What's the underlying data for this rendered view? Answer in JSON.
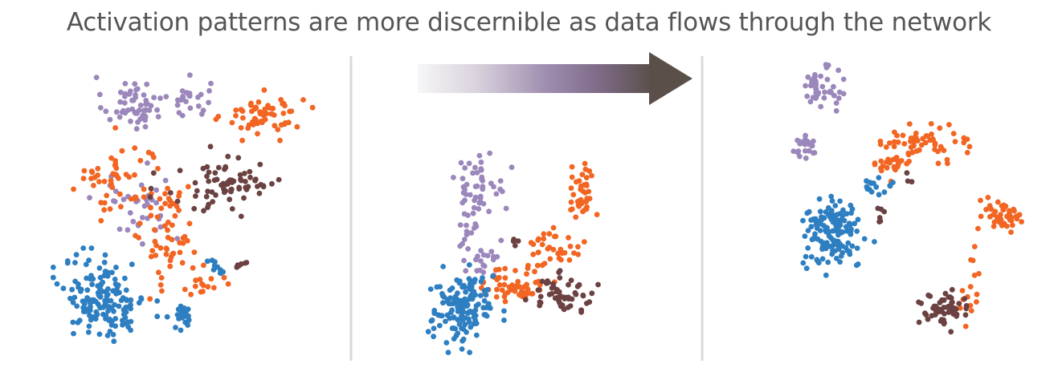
{
  "title": "Activation patterns are more discernible as data flows through the network",
  "colors": {
    "purple": "#9b87bb",
    "orange": "#f26522",
    "brown": "#6b4141",
    "blue": "#2e7fc1",
    "dark": "#555555",
    "divider": "#d9d9d9",
    "arrow_light": "#f3f1f3",
    "arrow_mid": "#8e7aa0",
    "arrow_dark": "#5b4f4a"
  },
  "arrow": {
    "direction": "right",
    "icon": "gradient-arrow-right-icon"
  },
  "chart_data": [
    {
      "type": "scatter",
      "clusters": [
        {
          "color": "purple",
          "cx": 0.3,
          "cy": 0.83,
          "rx": 0.1,
          "ry": 0.08,
          "n": 55
        },
        {
          "color": "purple",
          "cx": 0.52,
          "cy": 0.84,
          "rx": 0.07,
          "ry": 0.06,
          "n": 25
        },
        {
          "color": "purple",
          "cx": 0.32,
          "cy": 0.5,
          "rx": 0.15,
          "ry": 0.12,
          "n": 35
        },
        {
          "color": "orange",
          "cx": 0.8,
          "cy": 0.79,
          "rx": 0.13,
          "ry": 0.06,
          "n": 60
        },
        {
          "color": "orange",
          "cx": 0.25,
          "cy": 0.58,
          "rx": 0.16,
          "ry": 0.12,
          "n": 50
        },
        {
          "color": "orange",
          "cx": 0.45,
          "cy": 0.38,
          "rx": 0.1,
          "ry": 0.16,
          "n": 60
        },
        {
          "color": "orange",
          "cx": 0.58,
          "cy": 0.22,
          "rx": 0.06,
          "ry": 0.05,
          "n": 12
        },
        {
          "color": "brown",
          "cx": 0.65,
          "cy": 0.56,
          "rx": 0.2,
          "ry": 0.09,
          "n": 75
        },
        {
          "color": "brown",
          "cx": 0.72,
          "cy": 0.3,
          "rx": 0.03,
          "ry": 0.02,
          "n": 6
        },
        {
          "color": "blue",
          "cx": 0.2,
          "cy": 0.18,
          "rx": 0.14,
          "ry": 0.12,
          "n": 150
        },
        {
          "color": "blue",
          "cx": 0.49,
          "cy": 0.12,
          "rx": 0.04,
          "ry": 0.04,
          "n": 25
        },
        {
          "color": "blue",
          "cx": 0.62,
          "cy": 0.28,
          "rx": 0.04,
          "ry": 0.03,
          "n": 10
        }
      ]
    },
    {
      "type": "scatter",
      "clusters": [
        {
          "color": "purple",
          "cx": 0.3,
          "cy": 0.72,
          "rx": 0.1,
          "ry": 0.12,
          "n": 50
        },
        {
          "color": "purple",
          "cx": 0.27,
          "cy": 0.46,
          "rx": 0.06,
          "ry": 0.1,
          "n": 20
        },
        {
          "color": "purple",
          "cx": 0.35,
          "cy": 0.4,
          "rx": 0.06,
          "ry": 0.06,
          "n": 10
        },
        {
          "color": "orange",
          "cx": 0.73,
          "cy": 0.67,
          "rx": 0.05,
          "ry": 0.12,
          "n": 40
        },
        {
          "color": "orange",
          "cx": 0.62,
          "cy": 0.45,
          "rx": 0.1,
          "ry": 0.07,
          "n": 35
        },
        {
          "color": "orange",
          "cx": 0.45,
          "cy": 0.3,
          "rx": 0.12,
          "ry": 0.07,
          "n": 55
        },
        {
          "color": "brown",
          "cx": 0.65,
          "cy": 0.26,
          "rx": 0.12,
          "ry": 0.07,
          "n": 55
        },
        {
          "color": "brown",
          "cx": 0.45,
          "cy": 0.48,
          "rx": 0.02,
          "ry": 0.02,
          "n": 4
        },
        {
          "color": "blue",
          "cx": 0.24,
          "cy": 0.2,
          "rx": 0.12,
          "ry": 0.13,
          "n": 150
        }
      ]
    },
    {
      "type": "scatter",
      "clusters": [
        {
          "color": "purple",
          "cx": 0.25,
          "cy": 0.88,
          "rx": 0.06,
          "ry": 0.06,
          "n": 45
        },
        {
          "color": "purple",
          "cx": 0.2,
          "cy": 0.68,
          "rx": 0.05,
          "ry": 0.04,
          "n": 25
        },
        {
          "color": "orange",
          "cx": 0.62,
          "cy": 0.7,
          "rx": 0.13,
          "ry": 0.05,
          "n": 60
        },
        {
          "color": "orange",
          "cx": 0.5,
          "cy": 0.62,
          "rx": 0.06,
          "ry": 0.04,
          "n": 20
        },
        {
          "color": "orange",
          "cx": 0.88,
          "cy": 0.46,
          "rx": 0.06,
          "ry": 0.05,
          "n": 50
        },
        {
          "color": "orange",
          "cx": 0.77,
          "cy": 0.22,
          "rx": 0.03,
          "ry": 0.1,
          "n": 15
        },
        {
          "color": "blue",
          "cx": 0.3,
          "cy": 0.45,
          "rx": 0.08,
          "ry": 0.05,
          "n": 50
        },
        {
          "color": "blue",
          "cx": 0.3,
          "cy": 0.37,
          "rx": 0.1,
          "ry": 0.08,
          "n": 90
        },
        {
          "color": "blue",
          "cx": 0.44,
          "cy": 0.55,
          "rx": 0.06,
          "ry": 0.03,
          "n": 15
        },
        {
          "color": "brown",
          "cx": 0.68,
          "cy": 0.14,
          "rx": 0.08,
          "ry": 0.05,
          "n": 55
        },
        {
          "color": "brown",
          "cx": 0.46,
          "cy": 0.47,
          "rx": 0.02,
          "ry": 0.04,
          "n": 6
        },
        {
          "color": "brown",
          "cx": 0.56,
          "cy": 0.58,
          "rx": 0.02,
          "ry": 0.02,
          "n": 3
        }
      ]
    }
  ]
}
